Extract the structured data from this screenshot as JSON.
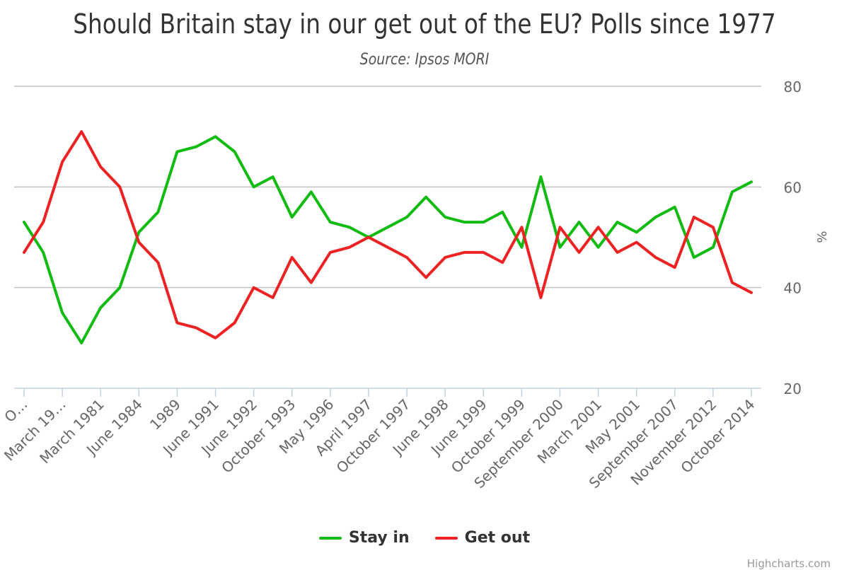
{
  "chart_data": {
    "type": "line",
    "title": "Should Britain stay in our get out of the EU? Polls since 1977",
    "subtitle": "Source: Ipsos MORI",
    "ylabel": "%",
    "ylim": [
      20,
      80
    ],
    "yticks": [
      20,
      40,
      60,
      80
    ],
    "grid": true,
    "legend_position": "bottom",
    "categories": [
      "O…",
      "",
      "March 19…",
      "",
      "March 1981",
      "",
      "June 1984",
      "",
      "1989",
      "",
      "June 1991",
      "",
      "June 1992",
      "",
      "October 1993",
      "",
      "May 1996",
      "",
      "April 1997",
      "",
      "October 1997",
      "",
      "June 1998",
      "",
      "June 1999",
      "",
      "October 1999",
      "",
      "September 2000",
      "",
      "March 2001",
      "",
      "May 2001",
      "",
      "September 2007",
      "",
      "November 2012",
      "",
      "October 2014"
    ],
    "series": [
      {
        "name": "Stay in",
        "color": "#11bb11",
        "values": [
          53,
          47,
          35,
          29,
          36,
          40,
          51,
          55,
          67,
          68,
          70,
          67,
          60,
          62,
          54,
          59,
          53,
          52,
          50,
          52,
          54,
          58,
          54,
          53,
          53,
          55,
          48,
          62,
          48,
          53,
          48,
          53,
          51,
          54,
          56,
          46,
          48,
          59,
          61
        ]
      },
      {
        "name": "Get out",
        "color": "#ee2222",
        "values": [
          47,
          53,
          65,
          71,
          64,
          60,
          49,
          45,
          33,
          32,
          30,
          33,
          40,
          38,
          46,
          41,
          47,
          48,
          50,
          48,
          46,
          42,
          46,
          47,
          47,
          45,
          52,
          38,
          52,
          47,
          52,
          47,
          49,
          46,
          44,
          54,
          52,
          41,
          39
        ]
      }
    ]
  },
  "credits": "Highcharts.com"
}
